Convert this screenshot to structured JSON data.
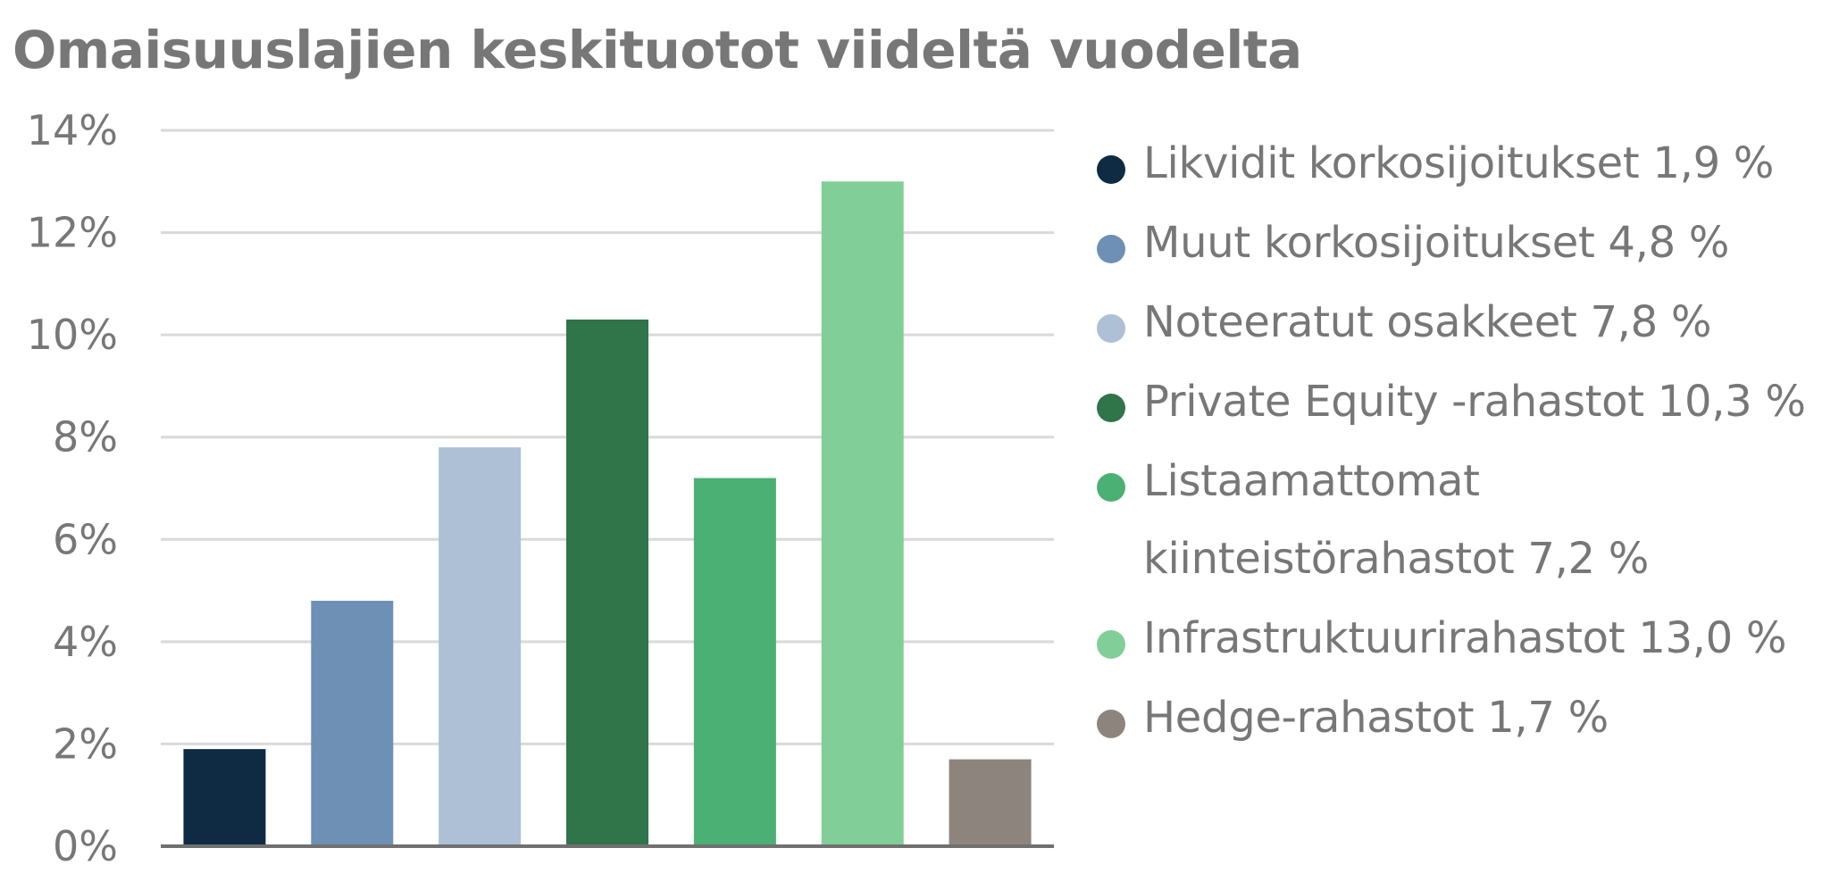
{
  "chart_data": {
    "type": "bar",
    "title": "Omaisuuslajien keskituotot viideltä vuodelta",
    "xlabel": "",
    "ylabel": "",
    "ylim": [
      0,
      14
    ],
    "y_ticks": [
      0,
      2,
      4,
      6,
      8,
      10,
      12,
      14
    ],
    "y_tick_labels": [
      "0%",
      "2%",
      "4%",
      "6%",
      "8%",
      "10%",
      "12%",
      "14%"
    ],
    "grid": true,
    "legend_position": "right",
    "categories": [
      "Likvidit korkosijoitukset",
      "Muut korkosijoitukset",
      "Noteeratut osakkeet",
      "Private Equity -rahastot",
      "Listaamattomat kiinteistörahastot",
      "Infrastruktuurirahastot",
      "Hedge-rahastot"
    ],
    "values": [
      1.9,
      4.8,
      7.8,
      10.3,
      7.2,
      13.0,
      1.7
    ],
    "colors": [
      "#0f2b44",
      "#6e90b4",
      "#adc0d6",
      "#30744a",
      "#4ab074",
      "#82ce98",
      "#8d857d"
    ],
    "legend": [
      "Likvidit korkosijoitukset 1,9 %",
      "Muut korkosijoitukset 4,8 %",
      "Noteeratut osakkeet 7,8 %",
      "Private Equity -rahastot 10,3 %",
      "Listaamattomat kiinteistörahastot 7,2 %",
      "Infrastruktuurirahastot 13,0 %",
      "Hedge-rahastot 1,7 %"
    ],
    "gridline_color": "#d9d9d9",
    "axis_color": "#707070",
    "text_color": "#777777"
  }
}
